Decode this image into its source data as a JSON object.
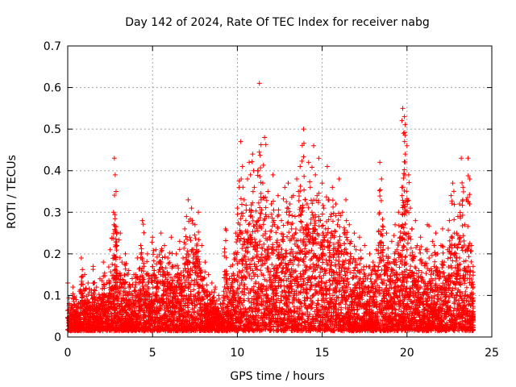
{
  "chart_data": {
    "type": "scatter",
    "title": "Day 142 of 2024, Rate Of TEC Index for receiver nabg",
    "xlabel": "GPS time / hours",
    "ylabel": "ROTI / TECUs",
    "xlim": [
      0,
      25
    ],
    "ylim": [
      0,
      0.7
    ],
    "xticks": [
      "0",
      "5",
      "10",
      "15",
      "20",
      "25"
    ],
    "yticks": [
      "0",
      "0.1",
      "0.2",
      "0.3",
      "0.4",
      "0.5",
      "0.6",
      "0.7"
    ],
    "grid": true,
    "marker": "plus",
    "color": "#ff0000",
    "series": [
      {
        "points": [
          [
            0.0,
            0.13
          ],
          [
            0.1,
            0.04
          ],
          [
            0.2,
            0.07
          ],
          [
            0.3,
            0.12
          ],
          [
            0.4,
            0.05
          ],
          [
            0.5,
            0.09
          ],
          [
            0.6,
            0.03
          ],
          [
            0.7,
            0.11
          ],
          [
            0.8,
            0.19
          ],
          [
            0.9,
            0.06
          ],
          [
            1.0,
            0.15
          ],
          [
            1.1,
            0.08
          ],
          [
            1.2,
            0.13
          ],
          [
            1.3,
            0.05
          ],
          [
            1.4,
            0.1
          ],
          [
            1.5,
            0.17
          ],
          [
            1.6,
            0.07
          ],
          [
            1.7,
            0.12
          ],
          [
            1.8,
            0.04
          ],
          [
            1.9,
            0.14
          ],
          [
            2.0,
            0.09
          ],
          [
            2.1,
            0.18
          ],
          [
            2.2,
            0.06
          ],
          [
            2.3,
            0.13
          ],
          [
            2.4,
            0.1
          ],
          [
            2.5,
            0.21
          ],
          [
            2.6,
            0.08
          ],
          [
            2.7,
            0.3
          ],
          [
            2.75,
            0.43
          ],
          [
            2.8,
            0.39
          ],
          [
            2.85,
            0.35
          ],
          [
            2.9,
            0.22
          ],
          [
            3.0,
            0.14
          ],
          [
            3.1,
            0.25
          ],
          [
            3.2,
            0.18
          ],
          [
            3.3,
            0.11
          ],
          [
            3.4,
            0.2
          ],
          [
            3.5,
            0.09
          ],
          [
            3.6,
            0.16
          ],
          [
            3.7,
            0.12
          ],
          [
            3.8,
            0.07
          ],
          [
            3.9,
            0.15
          ],
          [
            4.0,
            0.1
          ],
          [
            4.1,
            0.19
          ],
          [
            4.2,
            0.13
          ],
          [
            4.3,
            0.22
          ],
          [
            4.4,
            0.28
          ],
          [
            4.5,
            0.17
          ],
          [
            4.6,
            0.11
          ],
          [
            4.7,
            0.2
          ],
          [
            4.8,
            0.14
          ],
          [
            4.9,
            0.08
          ],
          [
            5.0,
            0.24
          ],
          [
            5.1,
            0.16
          ],
          [
            5.2,
            0.21
          ],
          [
            5.3,
            0.12
          ],
          [
            5.4,
            0.18
          ],
          [
            5.5,
            0.25
          ],
          [
            5.6,
            0.15
          ],
          [
            5.7,
            0.22
          ],
          [
            5.8,
            0.1
          ],
          [
            5.9,
            0.19
          ],
          [
            6.0,
            0.13
          ],
          [
            6.1,
            0.24
          ],
          [
            6.2,
            0.17
          ],
          [
            6.3,
            0.11
          ],
          [
            6.4,
            0.2
          ],
          [
            6.5,
            0.15
          ],
          [
            6.6,
            0.23
          ],
          [
            6.7,
            0.12
          ],
          [
            6.8,
            0.19
          ],
          [
            6.9,
            0.26
          ],
          [
            7.0,
            0.29
          ],
          [
            7.1,
            0.33
          ],
          [
            7.2,
            0.24
          ],
          [
            7.3,
            0.31
          ],
          [
            7.4,
            0.19
          ],
          [
            7.5,
            0.27
          ],
          [
            7.6,
            0.21
          ],
          [
            7.7,
            0.3
          ],
          [
            7.8,
            0.16
          ],
          [
            7.9,
            0.22
          ],
          [
            8.0,
            0.14
          ],
          [
            8.1,
            0.18
          ],
          [
            8.2,
            0.11
          ],
          [
            8.3,
            0.15
          ],
          [
            8.4,
            0.09
          ],
          [
            8.5,
            0.13
          ],
          [
            8.6,
            0.07
          ],
          [
            8.7,
            0.12
          ],
          [
            8.8,
            0.05
          ],
          [
            8.9,
            0.1
          ],
          [
            9.0,
            0.08
          ],
          [
            9.1,
            0.06
          ],
          [
            9.2,
            0.11
          ],
          [
            9.3,
            0.26
          ],
          [
            9.4,
            0.14
          ],
          [
            9.5,
            0.09
          ],
          [
            9.6,
            0.17
          ],
          [
            9.7,
            0.12
          ],
          [
            9.8,
            0.2
          ],
          [
            9.9,
            0.25
          ],
          [
            10.0,
            0.31
          ],
          [
            10.1,
            0.36
          ],
          [
            10.2,
            0.47
          ],
          [
            10.3,
            0.41
          ],
          [
            10.4,
            0.33
          ],
          [
            10.5,
            0.28
          ],
          [
            10.6,
            0.38
          ],
          [
            10.7,
            0.42
          ],
          [
            10.8,
            0.3
          ],
          [
            10.9,
            0.44
          ],
          [
            11.0,
            0.36
          ],
          [
            11.1,
            0.27
          ],
          [
            11.2,
            0.4
          ],
          [
            11.3,
            0.61
          ],
          [
            11.4,
            0.33
          ],
          [
            11.5,
            0.37
          ],
          [
            11.6,
            0.48
          ],
          [
            11.7,
            0.29
          ],
          [
            11.8,
            0.35
          ],
          [
            11.9,
            0.24
          ],
          [
            12.0,
            0.32
          ],
          [
            12.1,
            0.39
          ],
          [
            12.2,
            0.27
          ],
          [
            12.3,
            0.21
          ],
          [
            12.4,
            0.34
          ],
          [
            12.5,
            0.19
          ],
          [
            12.6,
            0.28
          ],
          [
            12.7,
            0.23
          ],
          [
            12.8,
            0.36
          ],
          [
            12.9,
            0.3
          ],
          [
            13.0,
            0.37
          ],
          [
            13.1,
            0.32
          ],
          [
            13.2,
            0.26
          ],
          [
            13.3,
            0.34
          ],
          [
            13.4,
            0.29
          ],
          [
            13.5,
            0.38
          ],
          [
            13.6,
            0.35
          ],
          [
            13.7,
            0.41
          ],
          [
            13.8,
            0.31
          ],
          [
            13.9,
            0.5
          ],
          [
            14.0,
            0.33
          ],
          [
            14.1,
            0.27
          ],
          [
            14.2,
            0.42
          ],
          [
            14.3,
            0.36
          ],
          [
            14.4,
            0.3
          ],
          [
            14.5,
            0.46
          ],
          [
            14.6,
            0.39
          ],
          [
            14.7,
            0.34
          ],
          [
            14.8,
            0.43
          ],
          [
            14.9,
            0.28
          ],
          [
            15.0,
            0.37
          ],
          [
            15.1,
            0.31
          ],
          [
            15.2,
            0.26
          ],
          [
            15.3,
            0.41
          ],
          [
            15.4,
            0.33
          ],
          [
            15.5,
            0.29
          ],
          [
            15.6,
            0.36
          ],
          [
            15.7,
            0.24
          ],
          [
            15.8,
            0.32
          ],
          [
            15.9,
            0.27
          ],
          [
            16.0,
            0.38
          ],
          [
            16.1,
            0.22
          ],
          [
            16.2,
            0.3
          ],
          [
            16.3,
            0.25
          ],
          [
            16.4,
            0.33
          ],
          [
            16.5,
            0.2
          ],
          [
            16.6,
            0.27
          ],
          [
            16.7,
            0.23
          ],
          [
            16.8,
            0.18
          ],
          [
            16.9,
            0.25
          ],
          [
            17.0,
            0.21
          ],
          [
            17.1,
            0.16
          ],
          [
            17.2,
            0.24
          ],
          [
            17.3,
            0.19
          ],
          [
            17.4,
            0.14
          ],
          [
            17.5,
            0.22
          ],
          [
            17.6,
            0.17
          ],
          [
            17.7,
            0.12
          ],
          [
            17.8,
            0.2
          ],
          [
            17.9,
            0.15
          ],
          [
            18.0,
            0.18
          ],
          [
            18.1,
            0.13
          ],
          [
            18.2,
            0.21
          ],
          [
            18.3,
            0.16
          ],
          [
            18.4,
            0.42
          ],
          [
            18.5,
            0.38
          ],
          [
            18.6,
            0.22
          ],
          [
            18.7,
            0.17
          ],
          [
            18.8,
            0.25
          ],
          [
            18.9,
            0.19
          ],
          [
            19.0,
            0.14
          ],
          [
            19.1,
            0.23
          ],
          [
            19.2,
            0.18
          ],
          [
            19.3,
            0.27
          ],
          [
            19.4,
            0.21
          ],
          [
            19.5,
            0.3
          ],
          [
            19.6,
            0.24
          ],
          [
            19.7,
            0.36
          ],
          [
            19.75,
            0.55
          ],
          [
            19.8,
            0.49
          ],
          [
            19.85,
            0.53
          ],
          [
            19.9,
            0.44
          ],
          [
            20.0,
            0.46
          ],
          [
            20.1,
            0.39
          ],
          [
            20.2,
            0.31
          ],
          [
            20.3,
            0.26
          ],
          [
            20.4,
            0.19
          ],
          [
            20.5,
            0.28
          ],
          [
            20.6,
            0.22
          ],
          [
            20.7,
            0.16
          ],
          [
            20.8,
            0.24
          ],
          [
            20.9,
            0.18
          ],
          [
            21.0,
            0.13
          ],
          [
            21.1,
            0.21
          ],
          [
            21.2,
            0.27
          ],
          [
            21.3,
            0.19
          ],
          [
            21.4,
            0.15
          ],
          [
            21.5,
            0.23
          ],
          [
            21.6,
            0.17
          ],
          [
            21.7,
            0.25
          ],
          [
            21.8,
            0.2
          ],
          [
            21.9,
            0.14
          ],
          [
            22.0,
            0.22
          ],
          [
            22.1,
            0.26
          ],
          [
            22.2,
            0.18
          ],
          [
            22.3,
            0.13
          ],
          [
            22.4,
            0.21
          ],
          [
            22.5,
            0.28
          ],
          [
            22.6,
            0.34
          ],
          [
            22.7,
            0.37
          ],
          [
            22.8,
            0.25
          ],
          [
            22.9,
            0.19
          ],
          [
            23.0,
            0.29
          ],
          [
            23.1,
            0.32
          ],
          [
            23.2,
            0.43
          ],
          [
            23.3,
            0.36
          ],
          [
            23.4,
            0.27
          ],
          [
            23.5,
            0.33
          ],
          [
            23.6,
            0.43
          ],
          [
            23.7,
            0.38
          ],
          [
            23.8,
            0.22
          ],
          [
            23.9,
            0.17
          ]
        ]
      }
    ]
  }
}
